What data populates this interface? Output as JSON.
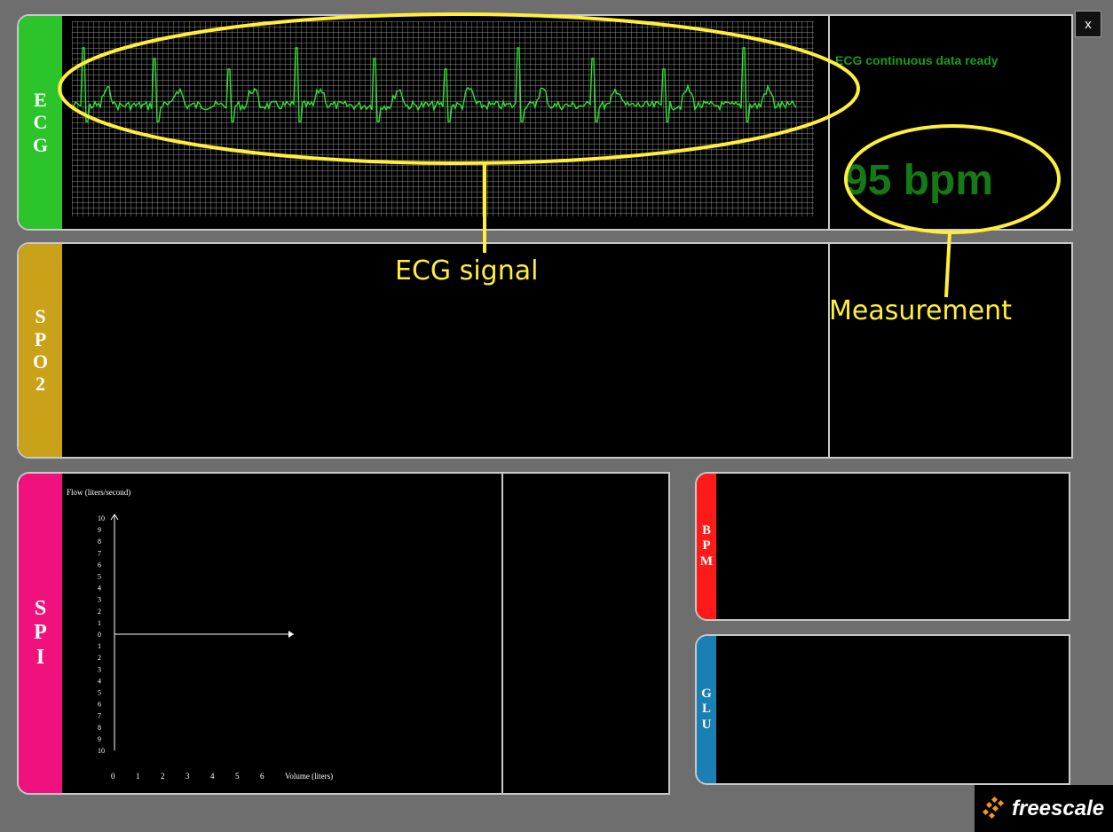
{
  "window": {
    "close_label": "x"
  },
  "ecg": {
    "tab_label": "E\nC\nG",
    "status_text": "ECG continuous data ready",
    "measurement": "95 bpm",
    "colors": {
      "tab": "#2bc42b",
      "trace": "#2ee62e",
      "grid": "#c8c8c8",
      "measurement": "#157a15",
      "status": "#15a015"
    }
  },
  "spo2": {
    "tab_label": "S\nP\nO\n2",
    "colors": {
      "tab": "#c9a21a"
    }
  },
  "spi": {
    "tab_label": "S\nP\nI",
    "colors": {
      "tab": "#f0117d"
    },
    "chart_data": {
      "type": "line",
      "ylabel": "Flow (liters/second)",
      "xlabel": "Volume (liters)",
      "y_tick_labels": [
        "10",
        "9",
        "8",
        "7",
        "6",
        "5",
        "4",
        "3",
        "2",
        "1",
        "0",
        "1",
        "2",
        "3",
        "4",
        "5",
        "6",
        "7",
        "8",
        "9",
        "10"
      ],
      "x_tick_labels": [
        "0",
        "1",
        "2",
        "3",
        "4",
        "5",
        "6"
      ],
      "ylim": [
        -10,
        10
      ],
      "xlim": [
        0,
        6
      ],
      "series": []
    }
  },
  "bpm": {
    "tab_label": "B\nP\nM",
    "colors": {
      "tab": "#ff1a1a"
    }
  },
  "glu": {
    "tab_label": "G\nL\nU",
    "colors": {
      "tab": "#1a7fb5"
    }
  },
  "annotations": {
    "ecg_signal_label": "ECG signal",
    "measurement_label": "Measurement",
    "color": "#ffef3a"
  },
  "logo": {
    "text": "freescale",
    "colors": {
      "mark": "#f7941d"
    }
  }
}
